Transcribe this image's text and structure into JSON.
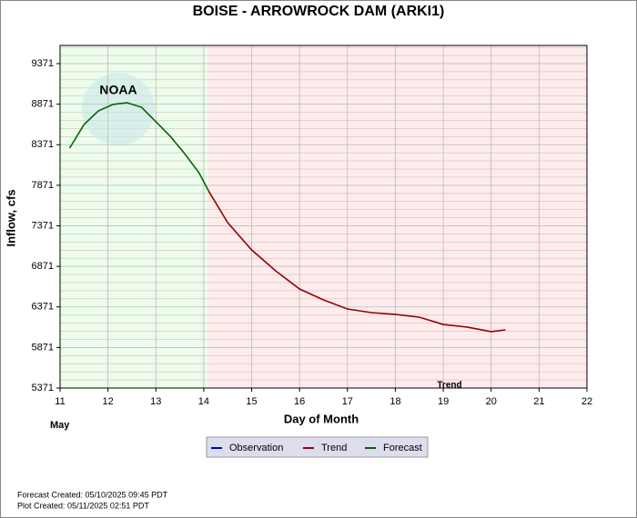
{
  "chart_data": {
    "type": "line",
    "title": "BOISE - ARROWROCK DAM  (ARKI1)",
    "x_label": "Day of Month",
    "y_label": "Inflow, cfs",
    "x_sublabel": "May",
    "annotation": "Trend",
    "logo_text": "NOAA",
    "x": [
      11.2,
      11.5,
      11.8,
      12.1,
      12.4,
      12.7,
      13.0,
      13.3,
      13.6,
      13.9,
      14.1,
      14.5,
      15.0,
      15.5,
      16.0,
      16.5,
      17.0,
      17.5,
      18.0,
      18.5,
      19.0,
      19.5,
      20.0,
      20.3
    ],
    "series": [
      {
        "name": "Observation",
        "color": "#0000cc",
        "values": [
          null,
          null,
          null,
          null,
          null,
          null,
          null,
          null,
          null,
          null,
          null,
          null,
          null,
          null,
          null,
          null,
          null,
          null,
          null,
          null,
          null,
          null,
          null,
          null
        ]
      },
      {
        "name": "Trend",
        "color": "#990000",
        "values": [
          null,
          null,
          null,
          null,
          null,
          null,
          null,
          null,
          null,
          null,
          7802,
          7410,
          7074,
          6816,
          6592,
          6458,
          6346,
          6301,
          6279,
          6245,
          6155,
          6122,
          6066,
          6088
        ]
      },
      {
        "name": "Forecast",
        "color": "#006600",
        "values": [
          8329,
          8620,
          8788,
          8867,
          8889,
          8833,
          8654,
          8475,
          8262,
          8026,
          7802,
          null,
          null,
          null,
          null,
          null,
          null,
          null,
          null,
          null,
          null,
          null,
          null,
          null
        ]
      }
    ],
    "xlim": [
      11,
      22
    ],
    "xticks": [
      11,
      12,
      13,
      14,
      15,
      16,
      17,
      18,
      19,
      20,
      21,
      22
    ],
    "ylim": [
      5371,
      9371
    ],
    "yticks": [
      5371,
      5871,
      6371,
      6871,
      7371,
      7871,
      8371,
      8871,
      9371
    ],
    "grid": true,
    "footer": [
      "Forecast Created: 05/10/2025 09:45 PDT",
      "Plot Created: 05/11/2025 02:51 PDT"
    ]
  }
}
